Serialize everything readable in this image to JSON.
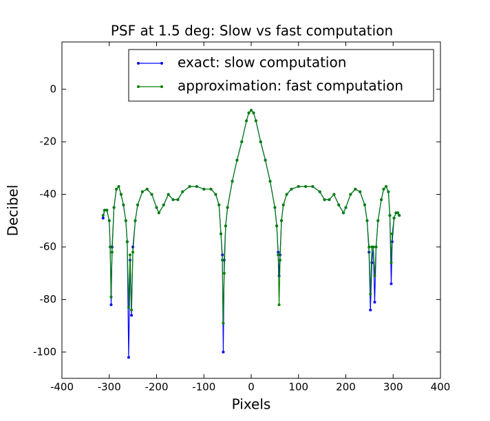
{
  "chart_data": {
    "type": "line",
    "title": "PSF at 1.5 deg: Slow vs fast computation",
    "x_label": "Pixels",
    "y_label": "Decibel",
    "xlim": [
      -400,
      400
    ],
    "xticks": [
      -400,
      -300,
      -200,
      -100,
      0,
      100,
      200,
      300,
      400
    ],
    "ylim": [
      -110,
      18
    ],
    "yticks": [
      -100,
      -80,
      -60,
      -40,
      -20,
      0
    ],
    "grid": false,
    "legend": "upper right",
    "x": [
      -313,
      -310,
      -305,
      -300,
      -298,
      -296,
      -294,
      -290,
      -285,
      -280,
      -275,
      -270,
      -265,
      -262,
      -259,
      -256,
      -253,
      -250,
      -245,
      -240,
      -230,
      -220,
      -210,
      -200,
      -195,
      -185,
      -175,
      -165,
      -155,
      -145,
      -130,
      -115,
      -100,
      -85,
      -75,
      -68,
      -64,
      -61,
      -59,
      -57,
      -54,
      -50,
      -40,
      -30,
      -20,
      -10,
      -5,
      0,
      5,
      10,
      20,
      30,
      40,
      50,
      54,
      57,
      59,
      61,
      64,
      68,
      75,
      85,
      100,
      115,
      130,
      145,
      155,
      165,
      175,
      185,
      195,
      200,
      210,
      220,
      230,
      240,
      245,
      249,
      252,
      255,
      258,
      261,
      264,
      268,
      275,
      280,
      285,
      290,
      293,
      296,
      298,
      302,
      306,
      310,
      313
    ],
    "series": [
      {
        "name": "exact: slow computation",
        "color": "#0000ff",
        "values": [
          -49,
          -46,
          -46,
          -50,
          -60,
          -82,
          -60,
          -45,
          -38,
          -37,
          -40,
          -44,
          -50,
          -58,
          -102,
          -65,
          -86,
          -60,
          -50,
          -44,
          -39,
          -38,
          -40,
          -45,
          -47,
          -44,
          -40,
          -42,
          -42,
          -39,
          -37,
          -37,
          -38,
          -38,
          -40,
          -44,
          -55,
          -63,
          -100,
          -65,
          -52,
          -45,
          -35,
          -27,
          -20,
          -12,
          -9,
          -8,
          -9,
          -12,
          -20,
          -27,
          -35,
          -45,
          -52,
          -62,
          -71,
          -63,
          -50,
          -44,
          -40,
          -38,
          -37,
          -37,
          -37,
          -39,
          -42,
          -42,
          -40,
          -44,
          -47,
          -45,
          -40,
          -38,
          -39,
          -44,
          -50,
          -62,
          -84,
          -66,
          -60,
          -81,
          -60,
          -50,
          -42,
          -38,
          -37,
          -39,
          -48,
          -74,
          -58,
          -49,
          -47,
          -47,
          -48
        ]
      },
      {
        "name": "approximation: fast computation",
        "color": "#008000",
        "values": [
          -48,
          -46,
          -46,
          -50,
          -60,
          -79,
          -62,
          -45,
          -38,
          -37,
          -40,
          -44,
          -50,
          -58,
          -83,
          -63,
          -84,
          -62,
          -50,
          -44,
          -39,
          -38,
          -40,
          -45,
          -47,
          -44,
          -40,
          -42,
          -42,
          -39,
          -37,
          -37,
          -38,
          -38,
          -40,
          -44,
          -55,
          -65,
          -89,
          -70,
          -52,
          -45,
          -35,
          -27,
          -20,
          -12,
          -9,
          -8,
          -9,
          -12,
          -20,
          -27,
          -35,
          -45,
          -52,
          -63,
          -82,
          -65,
          -50,
          -44,
          -40,
          -38,
          -37,
          -37,
          -37,
          -39,
          -42,
          -42,
          -40,
          -44,
          -47,
          -45,
          -40,
          -38,
          -39,
          -44,
          -50,
          -60,
          -78,
          -60,
          -60,
          -71,
          -60,
          -50,
          -42,
          -38,
          -37,
          -39,
          -48,
          -66,
          -55,
          -49,
          -47,
          -47,
          -48
        ]
      }
    ]
  }
}
